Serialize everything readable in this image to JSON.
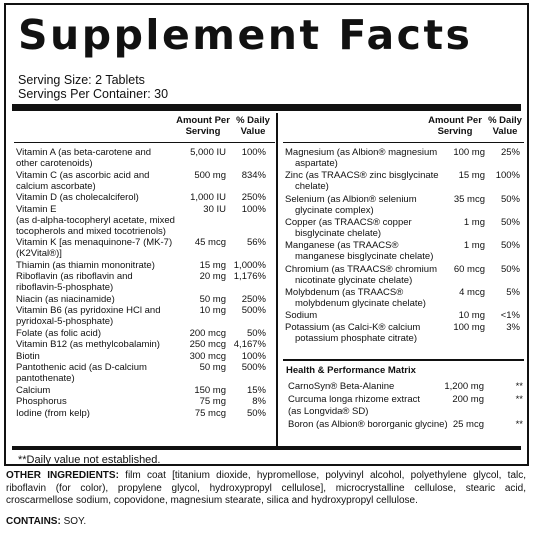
{
  "title": "Supplement Facts",
  "serving_size": "Serving Size: 2 Tablets",
  "servings_per_container": "Servings Per Container: 30",
  "headers": {
    "amount": "Amount Per Serving",
    "dv": "% Daily Value"
  },
  "left_rows": [
    {
      "name": [
        "Vitamin A (as beta-carotene and",
        "other carotenoids)"
      ],
      "amount": "5,000 IU",
      "dv": "100%"
    },
    {
      "name": [
        "Vitamin C (as ascorbic acid and",
        "calcium ascorbate)"
      ],
      "amount": "500 mg",
      "dv": "834%"
    },
    {
      "name": [
        "Vitamin D (as cholecalciferol)"
      ],
      "amount": "1,000 IU",
      "dv": "250%"
    },
    {
      "name": [
        "Vitamin E",
        "(as d-alpha-tocopheryl acetate, mixed",
        "tocopherols and mixed tocotrienols)"
      ],
      "amount": "30 IU",
      "dv": "100%"
    },
    {
      "name": [
        "Vitamin K [as menaquinone-7 (MK-7)",
        "(K2Vital®)]"
      ],
      "amount": "45 mcg",
      "dv": "56%"
    },
    {
      "name": [
        "Thiamin (as thiamin mononitrate)"
      ],
      "amount": "15 mg",
      "dv": "1,000%"
    },
    {
      "name": [
        "Riboflavin (as riboflavin and",
        "riboflavin-5-phosphate)"
      ],
      "amount": "20 mg",
      "dv": "1,176%"
    },
    {
      "name": [
        "Niacin (as niacinamide)"
      ],
      "amount": "50 mg",
      "dv": "250%"
    },
    {
      "name": [
        "Vitamin B6 (as pyridoxine HCl and",
        "pyridoxal-5-phosphate)"
      ],
      "amount": "10 mg",
      "dv": "500%"
    },
    {
      "name": [
        "Folate (as folic acid)"
      ],
      "amount": "200 mcg",
      "dv": "50%"
    },
    {
      "name": [
        "Vitamin B12 (as methylcobalamin)"
      ],
      "amount": "250 mcg",
      "dv": "4,167%"
    },
    {
      "name": [
        "Biotin"
      ],
      "amount": "300 mcg",
      "dv": "100%"
    },
    {
      "name": [
        "Pantothenic acid (as D-calcium",
        "pantothenate)"
      ],
      "amount": "50 mg",
      "dv": "500%"
    },
    {
      "name": [
        "Calcium"
      ],
      "amount": "150 mg",
      "dv": "15%"
    },
    {
      "name": [
        "Phosphorus"
      ],
      "amount": "75 mg",
      "dv": "8%"
    },
    {
      "name": [
        "Iodine (from kelp)"
      ],
      "amount": "75 mcg",
      "dv": "50%"
    }
  ],
  "right_rows": [
    {
      "name": [
        "Magnesium (as Albion® magnesium",
        "aspartate)"
      ],
      "amount": "100 mg",
      "dv": "25%"
    },
    {
      "name": [
        "Zinc (as TRAACS® zinc bisglycinate",
        "chelate)"
      ],
      "amount": "15 mg",
      "dv": "100%"
    },
    {
      "name": [
        "Selenium (as Albion® selenium",
        "glycinate complex)"
      ],
      "amount": "35 mcg",
      "dv": "50%"
    },
    {
      "name": [
        "Copper (as TRAACS® copper",
        "bisglycinate chelate)"
      ],
      "amount": "1 mg",
      "dv": "50%"
    },
    {
      "name": [
        "Manganese (as TRAACS®",
        "manganese bisglycinate chelate)"
      ],
      "amount": "1 mg",
      "dv": "50%"
    },
    {
      "name": [
        "Chromium (as TRAACS® chromium",
        "nicotinate glycinate chelate)"
      ],
      "amount": "60 mcg",
      "dv": "50%"
    },
    {
      "name": [
        "Molybdenum (as TRAACS®",
        "molybdenum glycinate chelate)"
      ],
      "amount": "4 mcg",
      "dv": "5%"
    },
    {
      "name": [
        "Sodium"
      ],
      "amount": "10 mg",
      "dv": "<1%"
    },
    {
      "name": [
        "Potassium (as Calci-K® calcium",
        "potassium phosphate citrate)"
      ],
      "amount": "100 mg",
      "dv": "3%"
    }
  ],
  "matrix_title": "Health & Performance Matrix",
  "matrix_rows": [
    {
      "name": [
        "CarnoSyn® Beta-Alanine"
      ],
      "amount": "1,200 mg",
      "dv": "**"
    },
    {
      "name": [
        "Curcuma longa rhizome extract",
        "(as Longvida® SD)"
      ],
      "amount": "200 mg",
      "dv": "**"
    },
    {
      "name": [
        "Boron (as Albion® bororganic glycine)"
      ],
      "amount": "25 mcg",
      "dv": "**"
    }
  ],
  "footnote": "**Daily value not established.",
  "other_ingredients_label": "OTHER INGREDIENTS:",
  "other_ingredients": "film coat [titanium dioxide, hypromellose, polyvinyl alcohol, polyethylene glycol, talc, riboflavin (for color), propylene glycol, hydroxypropyl cellulose], microcrystalline cellulose, stearic acid, croscarmellose sodium, copovidone, magnesium stearate, silica and hydroxypropyl cellulose.",
  "contains_label": "CONTAINS:",
  "contains": "SOY."
}
